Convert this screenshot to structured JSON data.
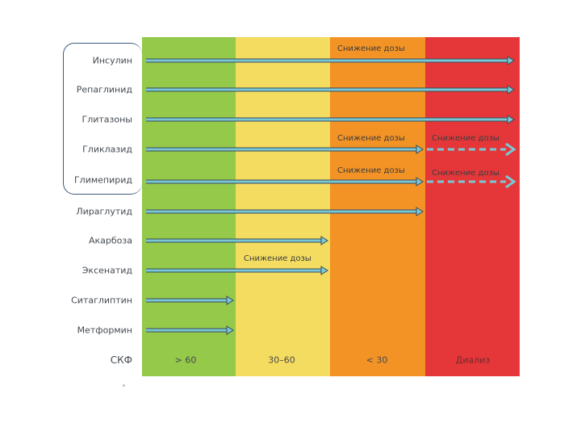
{
  "colors": {
    "zone_gfr_gt60": "#94c94a",
    "zone_gfr_30_60": "#f4dc60",
    "zone_gfr_lt30": "#f39325",
    "zone_dialysis": "#e5373a",
    "arrow_fill": "#78c8d6",
    "arrow_outline": "#3b4a55"
  },
  "axis": {
    "title": "СКФ",
    "zones": [
      {
        "label": "> 60"
      },
      {
        "label": "30–60"
      },
      {
        "label": "< 30"
      },
      {
        "label": "Диализ"
      }
    ]
  },
  "drugs": [
    {
      "name": "Инсулин",
      "allowed_through_zone": 4,
      "dose_reduction_zones": [
        3
      ],
      "dashed_zone": null,
      "grouped": true
    },
    {
      "name": "Репаглинид",
      "allowed_through_zone": 4,
      "dose_reduction_zones": [],
      "dashed_zone": null,
      "grouped": true
    },
    {
      "name": "Глитазоны",
      "allowed_through_zone": 4,
      "dose_reduction_zones": [],
      "dashed_zone": null,
      "grouped": true
    },
    {
      "name": "Гликлазид",
      "allowed_through_zone": 3,
      "dose_reduction_zones": [
        3,
        4
      ],
      "dashed_zone": 4,
      "grouped": true
    },
    {
      "name": "Глимепирид",
      "allowed_through_zone": 3,
      "dose_reduction_zones": [
        3,
        4
      ],
      "dashed_zone": 4,
      "grouped": true
    },
    {
      "name": "Лираглутид",
      "allowed_through_zone": 3,
      "dose_reduction_zones": [],
      "dashed_zone": null,
      "grouped": false
    },
    {
      "name": "Акарбоза",
      "allowed_through_zone": 2,
      "dose_reduction_zones": [],
      "dashed_zone": null,
      "grouped": false
    },
    {
      "name": "Эксенатид",
      "allowed_through_zone": 2,
      "dose_reduction_zones": [
        2
      ],
      "dashed_zone": null,
      "grouped": false
    },
    {
      "name": "Ситаглиптин",
      "allowed_through_zone": 1,
      "dose_reduction_zones": [],
      "dashed_zone": null,
      "grouped": false
    },
    {
      "name": "Метформин",
      "allowed_through_zone": 1,
      "dose_reduction_zones": [],
      "dashed_zone": null,
      "grouped": false
    }
  ],
  "notes": {
    "insulin_dose": "Снижение дозы",
    "gliclazide_dose": "Снижение дозы",
    "gliclazide_dose_dialysis": "Снижение дозы",
    "glimepiride_dose": "Снижение дозы",
    "glimepiride_dose_dialysis": "Снижение дозы",
    "exenatide_dose": "Снижение дозы"
  }
}
